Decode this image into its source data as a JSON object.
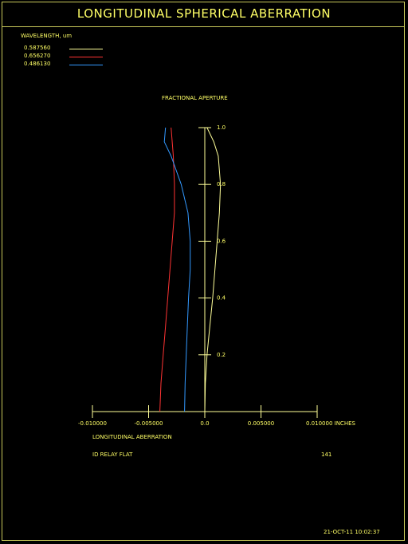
{
  "header": {
    "title": "LONGITUDINAL SPHERICAL ABERRATION"
  },
  "legend": {
    "heading": "WAVELENGTH, um",
    "items": [
      {
        "label": "0.587560",
        "color": "#ffff99"
      },
      {
        "label": "0.656270",
        "color": "#ff3333"
      },
      {
        "label": "0.486130",
        "color": "#3399ff"
      }
    ]
  },
  "footer": {
    "xlabel": "LONGITUDINAL ABERRATION",
    "system_name": "ID RELAY FLAT",
    "surface_count": "141",
    "timestamp": "21-OCT-11  10:02:37"
  },
  "chart_data": {
    "type": "line",
    "title": "LONGITUDINAL SPHERICAL ABERRATION",
    "xlabel": "LONGITUDINAL ABERRATION",
    "ylabel": "FRACTIONAL APERTURE",
    "x_units": "INCHES",
    "xlim": [
      -0.01,
      0.01
    ],
    "ylim": [
      0,
      1.0
    ],
    "x_ticks": [
      {
        "value": -0.01,
        "label": "-0.010000"
      },
      {
        "value": -0.005,
        "label": "-0.005000"
      },
      {
        "value": 0,
        "label": "0.0"
      },
      {
        "value": 0.005,
        "label": "0.005000"
      },
      {
        "value": 0.01,
        "label": "0.010000 INCHES"
      }
    ],
    "y_ticks": [
      {
        "value": 0.2,
        "label": "0.2"
      },
      {
        "value": 0.4,
        "label": "0.4"
      },
      {
        "value": 0.6,
        "label": "0.6"
      },
      {
        "value": 0.8,
        "label": "0.8"
      },
      {
        "value": 1.0,
        "label": "1.0"
      }
    ],
    "grid": false,
    "legend_position": "top-left",
    "series": [
      {
        "name": "0.587560",
        "color": "#ffff99",
        "points": [
          [
            0,
            0
          ],
          [
            5e-05,
            0.1
          ],
          [
            0.0002,
            0.2
          ],
          [
            0.00045,
            0.3
          ],
          [
            0.0007,
            0.4
          ],
          [
            0.0009,
            0.5
          ],
          [
            0.0011,
            0.6
          ],
          [
            0.0013,
            0.7
          ],
          [
            0.0014,
            0.8
          ],
          [
            0.0012,
            0.9
          ],
          [
            0.0008,
            0.95
          ],
          [
            0.0002,
            1.0
          ]
        ]
      },
      {
        "name": "0.656270",
        "color": "#ff3333",
        "points": [
          [
            -0.004,
            0
          ],
          [
            -0.0039,
            0.1
          ],
          [
            -0.0037,
            0.2
          ],
          [
            -0.0035,
            0.3
          ],
          [
            -0.0033,
            0.4
          ],
          [
            -0.0031,
            0.5
          ],
          [
            -0.0029,
            0.6
          ],
          [
            -0.0027,
            0.7
          ],
          [
            -0.0027,
            0.8
          ],
          [
            -0.0028,
            0.9
          ],
          [
            -0.0029,
            0.95
          ],
          [
            -0.003,
            1.0
          ]
        ]
      },
      {
        "name": "0.486130",
        "color": "#3399ff",
        "points": [
          [
            -0.0018,
            0
          ],
          [
            -0.00175,
            0.1
          ],
          [
            -0.00165,
            0.2
          ],
          [
            -0.00155,
            0.3
          ],
          [
            -0.00145,
            0.4
          ],
          [
            -0.0013,
            0.5
          ],
          [
            -0.0013,
            0.6
          ],
          [
            -0.0015,
            0.7
          ],
          [
            -0.0021,
            0.8
          ],
          [
            -0.003,
            0.9
          ],
          [
            -0.0036,
            0.95
          ],
          [
            -0.0035,
            1.0
          ]
        ]
      }
    ]
  }
}
